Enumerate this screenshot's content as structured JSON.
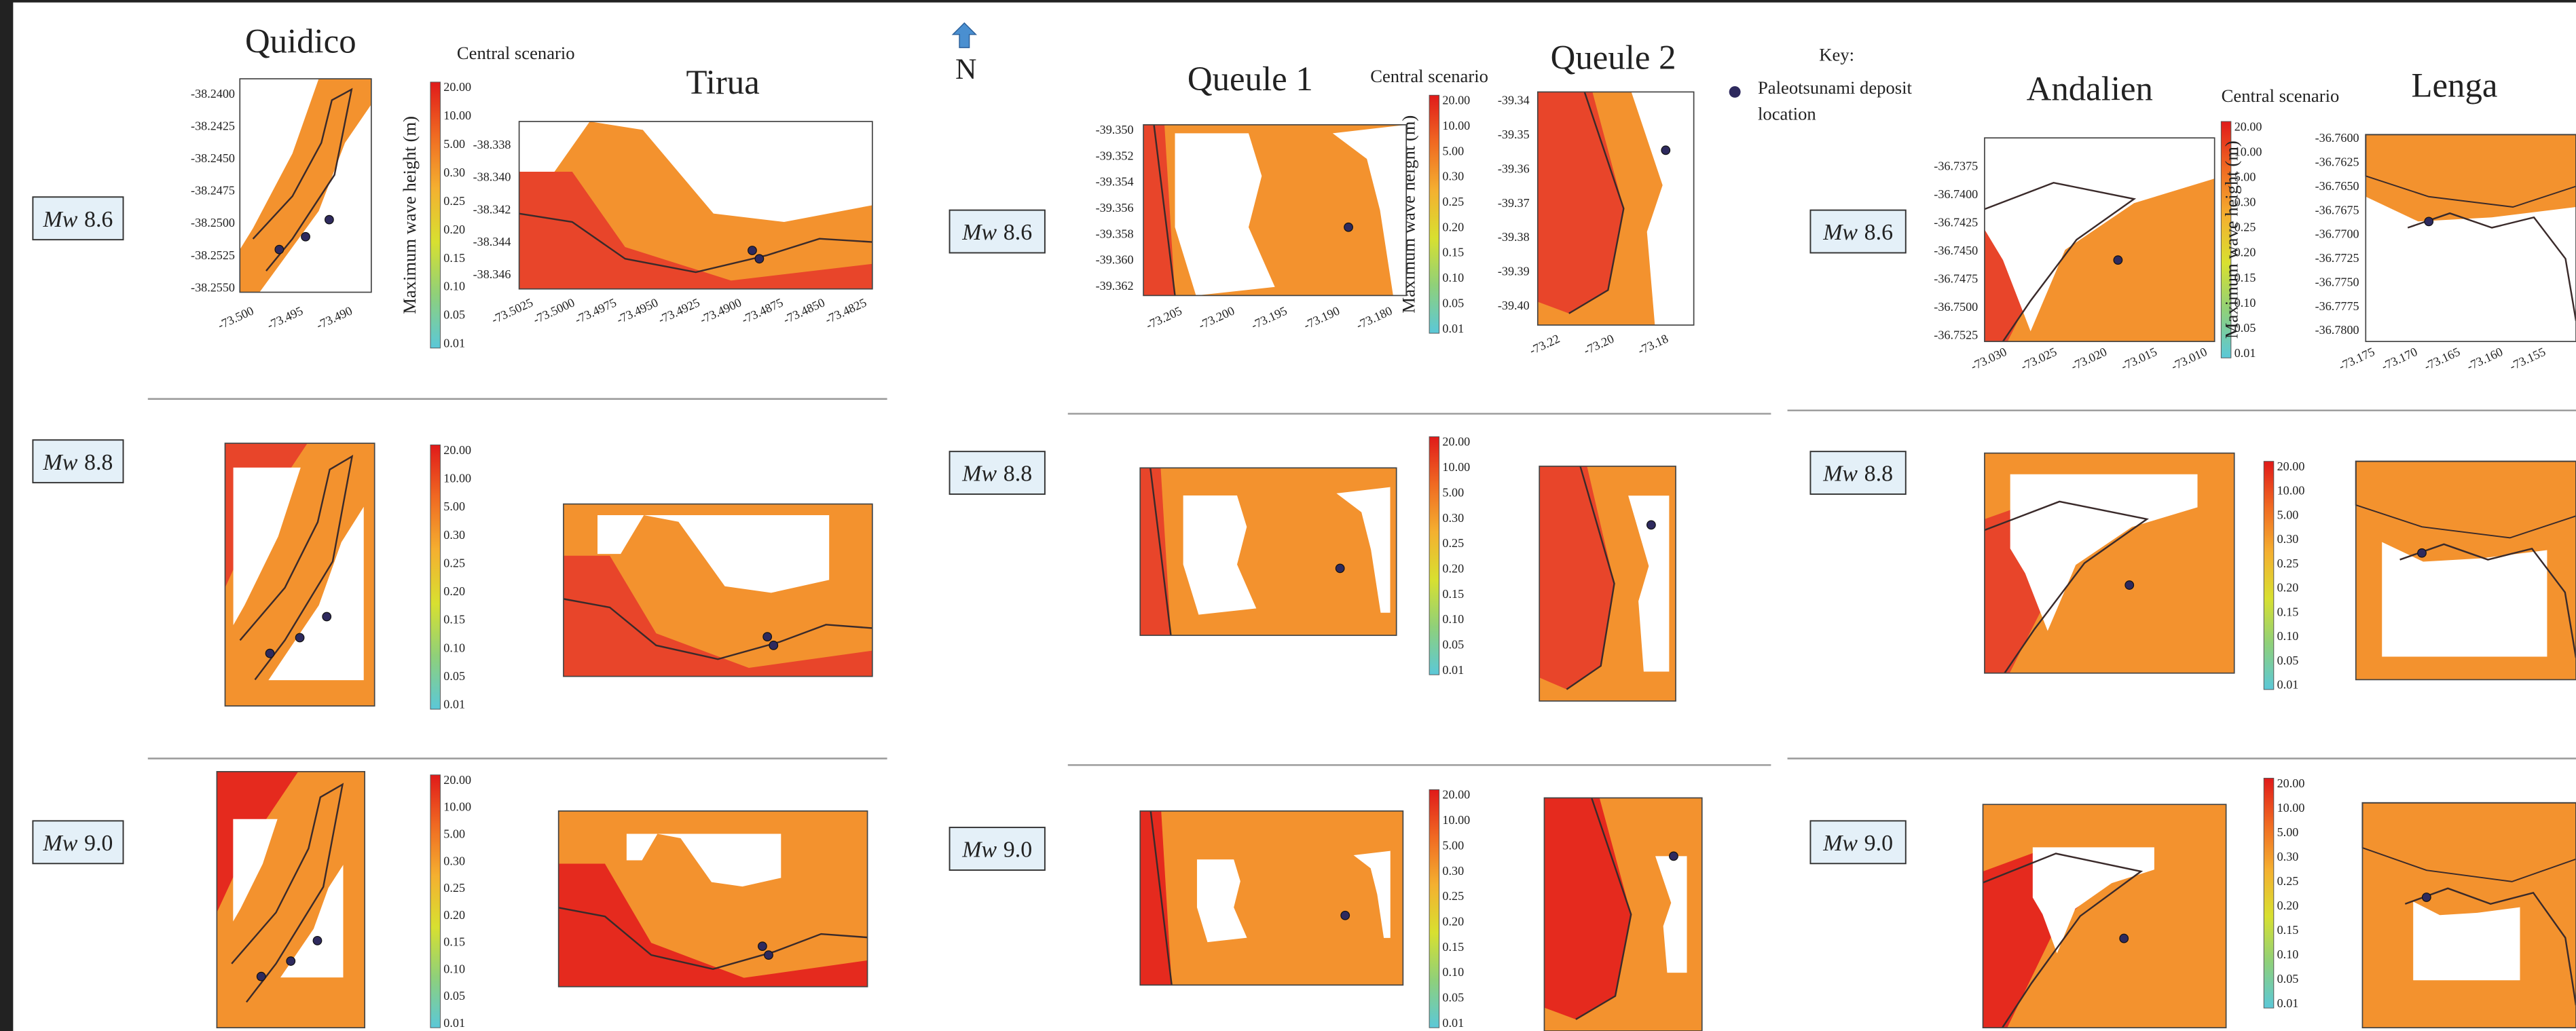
{
  "north_arrow": {
    "label": "N"
  },
  "key": {
    "title": "Key:",
    "label_lines": [
      "Paleotsunami deposit",
      "location"
    ]
  },
  "colorbar": {
    "scenario": "Central scenario",
    "axis_label": "Maximum wave height (m)",
    "labels": [
      "20.00",
      "10.00",
      "5.00",
      "0.30",
      "0.25",
      "0.20",
      "0.15",
      "0.10",
      "0.05",
      "0.01"
    ]
  },
  "rows": [
    {
      "symbol": "Mw",
      "magnitude": "8.6"
    },
    {
      "symbol": "Mw",
      "magnitude": "8.8"
    },
    {
      "symbol": "Mw",
      "magnitude": "9.0"
    }
  ],
  "sites": [
    {
      "title": "Quidico",
      "yticks": [
        "-38.2400",
        "-38.2425",
        "-38.2450",
        "-38.2475",
        "-38.2500",
        "-38.2525",
        "-38.2550"
      ],
      "xticks": [
        "-73.500",
        "-73.495",
        "-73.490"
      ]
    },
    {
      "title": "Tirua",
      "yticks": [
        "-38.338",
        "-38.340",
        "-38.342",
        "-38.344",
        "-38.346"
      ],
      "xticks": [
        "-73.5025",
        "-73.5000",
        "-73.4975",
        "-73.4950",
        "-73.4925",
        "-73.4900",
        "-73.4875",
        "-73.4850",
        "-73.4825"
      ]
    },
    {
      "title": "Queule 1",
      "yticks": [
        "-39.350",
        "-39.352",
        "-39.354",
        "-39.356",
        "-39.358",
        "-39.360",
        "-39.362"
      ],
      "xticks": [
        "-73.205",
        "-73.200",
        "-73.195",
        "-73.190",
        "-73.180"
      ]
    },
    {
      "title": "Queule 2",
      "yticks": [
        "-39.34",
        "-39.35",
        "-39.36",
        "-39.37",
        "-39.38",
        "-39.39",
        "-39.40"
      ],
      "xticks": [
        "-73.22",
        "-73.20",
        "-73.18"
      ]
    },
    {
      "title": "Andalien",
      "yticks": [
        "-36.7375",
        "-36.7400",
        "-36.7425",
        "-36.7450",
        "-36.7475",
        "-36.7500",
        "-36.7525"
      ],
      "xticks": [
        "-73.030",
        "-73.025",
        "-73.020",
        "-73.015",
        "-73.010"
      ]
    },
    {
      "title": "Lenga",
      "yticks": [
        "-36.7600",
        "-36.7625",
        "-36.7650",
        "-36.7675",
        "-36.7700",
        "-36.7725",
        "-36.7750",
        "-36.7775",
        "-36.7800"
      ],
      "xticks": [
        "-73.175",
        "-73.170",
        "-73.165",
        "-73.160",
        "-73.155"
      ]
    }
  ]
}
